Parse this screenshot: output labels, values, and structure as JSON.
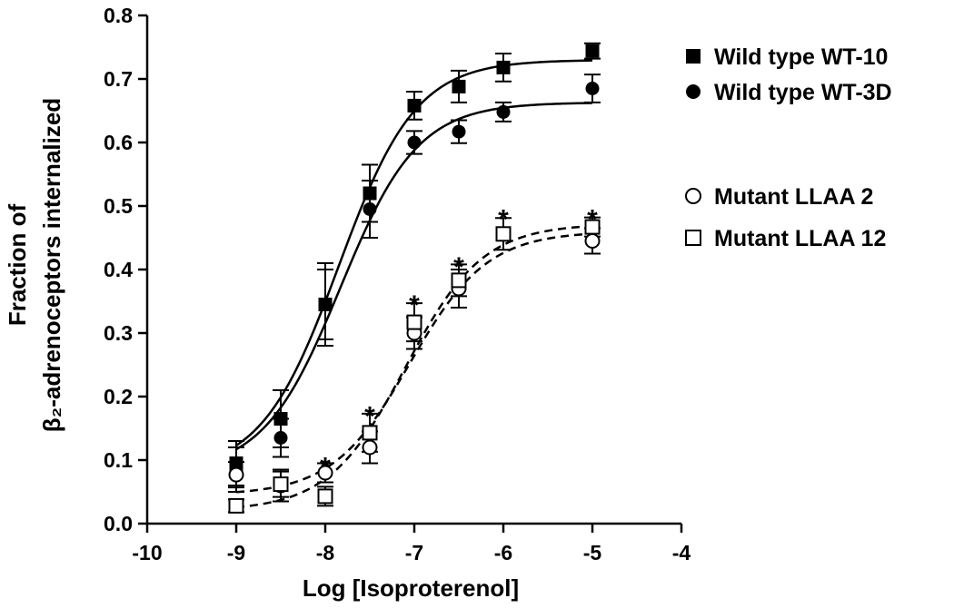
{
  "chart_data": {
    "type": "scatter",
    "xlabel": "Log [Isoproterenol]",
    "ylabel_lines": [
      "Fraction of",
      "β₂-adrenoceptors internalized"
    ],
    "xlim": [
      -10,
      -4
    ],
    "ylim": [
      0.0,
      0.8
    ],
    "xticks": [
      -10,
      -9,
      -8,
      -7,
      -6,
      -5,
      -4
    ],
    "xtick_labels": [
      "-10",
      "-9",
      "-8",
      "-7",
      "-6",
      "-5",
      "-4"
    ],
    "yticks": [
      0.0,
      0.1,
      0.2,
      0.3,
      0.4,
      0.5,
      0.6,
      0.7,
      0.8
    ],
    "ytick_labels": [
      "0.0",
      "0.1",
      "0.2",
      "0.3",
      "0.4",
      "0.5",
      "0.6",
      "0.7",
      "0.8"
    ],
    "legend_position": "right",
    "series": [
      {
        "name": "Wild type WT-10",
        "marker": "filled-square",
        "line": "solid",
        "x": [
          -9,
          -8.5,
          -8,
          -7.5,
          -7,
          -6.5,
          -6,
          -5
        ],
        "y": [
          0.095,
          0.165,
          0.345,
          0.52,
          0.658,
          0.688,
          0.718,
          0.744
        ],
        "err": [
          0.035,
          0.045,
          0.065,
          0.045,
          0.022,
          0.025,
          0.022,
          0.012
        ],
        "fit": {
          "bottom": 0.08,
          "top": 0.73,
          "logEC50": -7.85,
          "hill": 1.0
        }
      },
      {
        "name": "Wild type WT-3D",
        "marker": "filled-circle",
        "line": "solid",
        "x": [
          -9,
          -8.5,
          -8,
          -7.5,
          -7,
          -6.5,
          -6,
          -5
        ],
        "y": [
          0.085,
          0.135,
          0.345,
          0.495,
          0.6,
          0.617,
          0.648,
          0.685
        ],
        "err": [
          0.035,
          0.03,
          0.055,
          0.045,
          0.018,
          0.018,
          0.015,
          0.022
        ],
        "fit": {
          "bottom": 0.08,
          "top": 0.663,
          "logEC50": -7.83,
          "hill": 1.0
        }
      },
      {
        "name": "Mutant LLAA 2",
        "marker": "open-circle",
        "line": "dashed",
        "x": [
          -9,
          -8.5,
          -8,
          -7.5,
          -7,
          -6.5,
          -5
        ],
        "y": [
          0.077,
          0.06,
          0.08,
          0.12,
          0.3,
          0.37,
          0.445
        ],
        "err": [
          0.02,
          0.025,
          0.015,
          0.025,
          0.025,
          0.03,
          0.02
        ],
        "fit": {
          "bottom": 0.045,
          "top": 0.46,
          "logEC50": -7.05,
          "hill": 1.0
        }
      },
      {
        "name": "Mutant LLAA 12",
        "marker": "open-square",
        "line": "dashed",
        "x": [
          -9,
          -8.5,
          -8,
          -7.5,
          -7,
          -6.5,
          -6,
          -5
        ],
        "y": [
          0.028,
          0.062,
          0.043,
          0.143,
          0.317,
          0.383,
          0.456,
          0.467
        ],
        "err": [
          0.01,
          0.02,
          0.015,
          0.03,
          0.03,
          0.025,
          0.025,
          0.015
        ],
        "fit": {
          "bottom": 0.02,
          "top": 0.472,
          "logEC50": -7.1,
          "hill": 1.0
        }
      }
    ],
    "annotations": [
      {
        "text": "*",
        "x": -8,
        "y": 0.095
      },
      {
        "text": "*",
        "x": -7.5,
        "y": 0.175
      },
      {
        "text": "*",
        "x": -7,
        "y": 0.35
      },
      {
        "text": "*",
        "x": -6.5,
        "y": 0.41
      },
      {
        "text": "*",
        "x": -6,
        "y": 0.485
      },
      {
        "text": "*",
        "x": -5,
        "y": 0.485
      }
    ]
  }
}
